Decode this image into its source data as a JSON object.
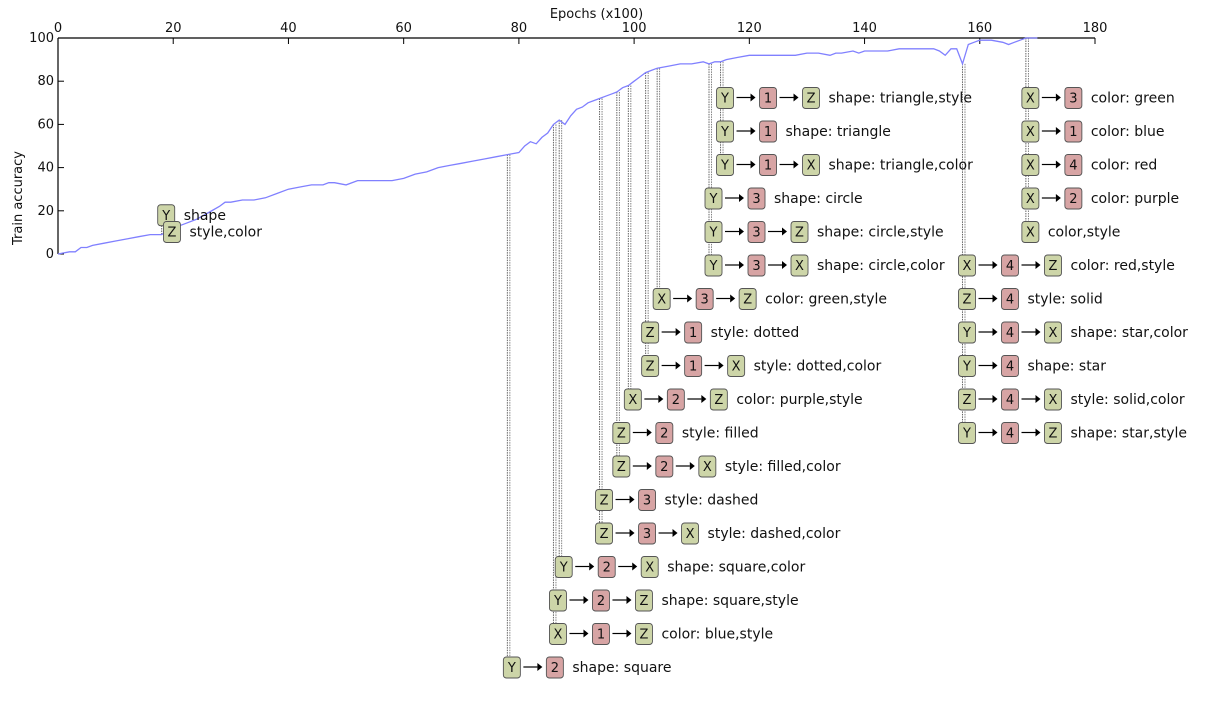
{
  "chart_data": {
    "type": "line",
    "title": "",
    "xlabel": "Epochs (x100)",
    "ylabel": "Train accuracy",
    "xlim": [
      0,
      180
    ],
    "ylim": [
      0,
      100
    ],
    "x_ticks": [
      0,
      20,
      40,
      60,
      80,
      100,
      120,
      140,
      160,
      180
    ],
    "y_ticks": [
      0,
      20,
      40,
      60,
      80,
      100
    ],
    "x_axis_position": "top",
    "grid": false,
    "colors": {
      "line": "#8080ff",
      "var_box": "#cdd5a8",
      "num_box": "#d7a4a4",
      "box_border": "#555555",
      "leader": "#666666"
    },
    "series": [
      {
        "x": [
          0,
          2,
          3,
          4,
          5,
          6,
          8,
          10,
          12,
          14,
          16,
          18,
          19,
          20,
          22,
          24,
          26,
          28,
          29,
          30,
          32,
          34,
          36,
          38,
          40,
          42,
          44,
          46,
          47,
          48,
          50,
          52,
          54,
          56,
          58,
          60,
          62,
          64,
          66,
          68,
          70,
          72,
          74,
          76,
          78,
          80,
          81,
          82,
          83,
          84,
          85,
          86,
          87,
          88,
          89,
          90,
          91,
          92,
          93,
          94,
          95,
          96,
          97,
          98,
          99,
          100,
          101,
          102,
          103,
          104,
          106,
          108,
          110,
          112,
          113,
          114,
          115,
          116,
          118,
          120,
          122,
          124,
          126,
          128,
          130,
          132,
          134,
          135,
          136,
          138,
          139,
          140,
          142,
          144,
          146,
          148,
          150,
          152,
          153,
          154,
          155,
          156,
          157,
          158,
          159,
          160,
          162,
          164,
          165,
          166,
          167,
          168,
          169,
          170
        ],
        "y": [
          0,
          1,
          1,
          3,
          3,
          4,
          5,
          6,
          7,
          8,
          9,
          9,
          11,
          12,
          14,
          16,
          19,
          22,
          24,
          24,
          25,
          25,
          26,
          28,
          30,
          31,
          32,
          32,
          33,
          33,
          32,
          34,
          34,
          34,
          34,
          35,
          37,
          38,
          40,
          41,
          42,
          43,
          44,
          45,
          46,
          47,
          50,
          52,
          51,
          54,
          56,
          60,
          62,
          60,
          64,
          67,
          68,
          70,
          71,
          72,
          73,
          74,
          75,
          77,
          78,
          80,
          82,
          84,
          85,
          86,
          87,
          88,
          88,
          89,
          88,
          89,
          89,
          90,
          91,
          92,
          92,
          92,
          92,
          92,
          93,
          93,
          92,
          93,
          93,
          94,
          93,
          94,
          94,
          94,
          95,
          95,
          95,
          95,
          94,
          92,
          95,
          95,
          88,
          97,
          98,
          99,
          99,
          98,
          97,
          98,
          99,
          100,
          100,
          100
        ]
      }
    ],
    "annotations": [
      {
        "epoch": 18,
        "label_level": 5,
        "tokens": [
          "Y"
        ],
        "text": "shape"
      },
      {
        "epoch": 19,
        "label_level": 6,
        "tokens": [
          "Z"
        ],
        "text": "style,color"
      },
      {
        "epoch": 78,
        "label_level": 32,
        "tokens": [
          "Y",
          "2"
        ],
        "text": "shape: square"
      },
      {
        "epoch": 86,
        "label_level": 30,
        "tokens": [
          "X",
          "1",
          "Z"
        ],
        "text": "color: blue,style"
      },
      {
        "epoch": 86,
        "label_level": 28,
        "tokens": [
          "Y",
          "2",
          "Z"
        ],
        "text": "shape: square,style"
      },
      {
        "epoch": 87,
        "label_level": 26,
        "tokens": [
          "Y",
          "2",
          "X"
        ],
        "text": "shape: square,color"
      },
      {
        "epoch": 94,
        "label_level": 24,
        "tokens": [
          "Z",
          "3",
          "X"
        ],
        "text": "style: dashed,color"
      },
      {
        "epoch": 94,
        "label_level": 22,
        "tokens": [
          "Z",
          "3"
        ],
        "text": "style: dashed"
      },
      {
        "epoch": 97,
        "label_level": 20,
        "tokens": [
          "Z",
          "2",
          "X"
        ],
        "text": "style: filled,color"
      },
      {
        "epoch": 97,
        "label_level": 18,
        "tokens": [
          "Z",
          "2"
        ],
        "text": "style: filled"
      },
      {
        "epoch": 99,
        "label_level": 16,
        "tokens": [
          "X",
          "2",
          "Z"
        ],
        "text": "color: purple,style"
      },
      {
        "epoch": 102,
        "label_level": 14,
        "tokens": [
          "Z",
          "1",
          "X"
        ],
        "text": "style: dotted,color"
      },
      {
        "epoch": 102,
        "label_level": 12,
        "tokens": [
          "Z",
          "1"
        ],
        "text": "style: dotted"
      },
      {
        "epoch": 104,
        "label_level": 10,
        "tokens": [
          "X",
          "3",
          "Z"
        ],
        "text": "color: green,style"
      },
      {
        "epoch": 113,
        "label_level": 8,
        "tokens": [
          "Y",
          "3",
          "X"
        ],
        "text": "shape: circle,color"
      },
      {
        "epoch": 113,
        "label_level": 6,
        "tokens": [
          "Y",
          "3",
          "Z"
        ],
        "text": "shape: circle,style"
      },
      {
        "epoch": 113,
        "label_level": 4,
        "tokens": [
          "Y",
          "3"
        ],
        "text": "shape: circle"
      },
      {
        "epoch": 115,
        "label_level": 2,
        "tokens": [
          "Y",
          "1",
          "X"
        ],
        "text": "shape: triangle,color"
      },
      {
        "epoch": 115,
        "label_level": 0,
        "tokens": [
          "Y",
          "1"
        ],
        "text": "shape: triangle"
      },
      {
        "epoch": 115,
        "label_level": -2,
        "tokens": [
          "Y",
          "1",
          "Z"
        ],
        "text": "shape: triangle,style"
      },
      {
        "epoch": 157,
        "label_level": 18,
        "tokens": [
          "Y",
          "4",
          "Z"
        ],
        "text": "shape: star,style"
      },
      {
        "epoch": 157,
        "label_level": 16,
        "tokens": [
          "Z",
          "4",
          "X"
        ],
        "text": "style: solid,color"
      },
      {
        "epoch": 157,
        "label_level": 14,
        "tokens": [
          "Y",
          "4"
        ],
        "text": "shape: star"
      },
      {
        "epoch": 157,
        "label_level": 12,
        "tokens": [
          "Y",
          "4",
          "X"
        ],
        "text": "shape: star,color"
      },
      {
        "epoch": 157,
        "label_level": 10,
        "tokens": [
          "Z",
          "4"
        ],
        "text": "style: solid"
      },
      {
        "epoch": 157,
        "label_level": 8,
        "tokens": [
          "X",
          "4",
          "Z"
        ],
        "text": "color: red,style"
      },
      {
        "epoch": 168,
        "label_level": 6,
        "tokens": [
          "X"
        ],
        "text": "color,style"
      },
      {
        "epoch": 168,
        "label_level": 4,
        "tokens": [
          "X",
          "2"
        ],
        "text": "color: purple"
      },
      {
        "epoch": 168,
        "label_level": 2,
        "tokens": [
          "X",
          "4"
        ],
        "text": "color: red"
      },
      {
        "epoch": 168,
        "label_level": 0,
        "tokens": [
          "X",
          "1"
        ],
        "text": "color: blue"
      },
      {
        "epoch": 168,
        "label_level": -2,
        "tokens": [
          "X",
          "3"
        ],
        "text": "color: green"
      }
    ]
  }
}
